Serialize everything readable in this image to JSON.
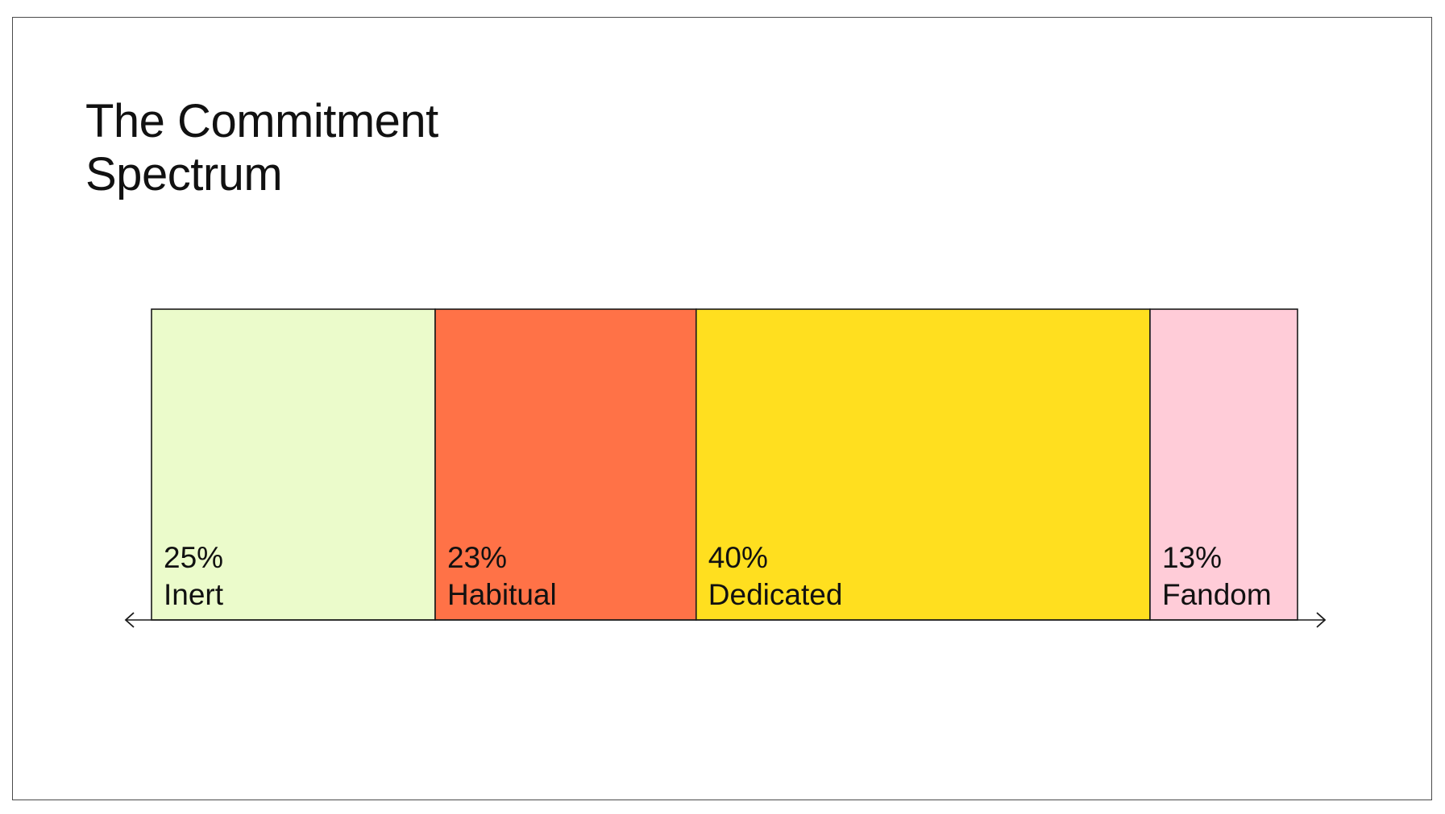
{
  "title_line1": "The Commitment",
  "title_line2": "Spectrum",
  "chart_data": {
    "type": "bar",
    "orientation": "stacked-horizontal",
    "categories": [
      "Inert",
      "Habitual",
      "Dedicated",
      "Fandom"
    ],
    "values": [
      25,
      23,
      40,
      13
    ],
    "value_labels": [
      "25%",
      "23%",
      "40%",
      "13%"
    ],
    "colors": [
      "#EBFBCB",
      "#FF7247",
      "#FFDF1F",
      "#FFCCD8"
    ],
    "title": "The Commitment Spectrum",
    "xlabel": "",
    "ylabel": "",
    "unit": "%",
    "grid": false,
    "legend": "none",
    "axis_arrows": "both"
  }
}
